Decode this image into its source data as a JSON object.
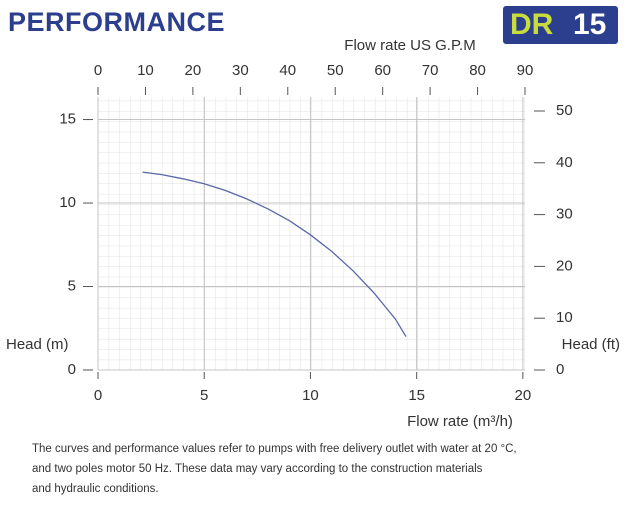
{
  "header": {
    "title": "PERFORMANCE",
    "badge_model": "DR",
    "badge_number": "15"
  },
  "chart_data": {
    "type": "line",
    "x_label": "Flow rate (m³/h)",
    "x2_label": "Flow rate US  G.P.M",
    "y_label": "Head (m)",
    "y2_label": "Head (ft)",
    "xlim": [
      0,
      20.1
    ],
    "xticks": [
      0,
      5,
      10,
      15,
      20
    ],
    "x2lim": [
      0,
      90
    ],
    "x2ticks": [
      0,
      10,
      20,
      30,
      40,
      50,
      60,
      70,
      80,
      90
    ],
    "ylim": [
      0,
      16.35
    ],
    "yticks": [
      0,
      5,
      10,
      15
    ],
    "y2lim": [
      0,
      52.7
    ],
    "y2ticks": [
      0,
      10,
      20,
      30,
      40,
      50
    ],
    "grid": true,
    "x": [
      2.1,
      3,
      4,
      5,
      6,
      7,
      8,
      9,
      10,
      11,
      12,
      13,
      14,
      14.5
    ],
    "series": [
      {
        "color": "#5a67a8",
        "values": [
          11.85,
          11.7,
          11.45,
          11.15,
          10.75,
          10.25,
          9.65,
          8.95,
          8.1,
          7.1,
          5.95,
          4.6,
          3.05,
          2.0
        ]
      }
    ]
  },
  "footnote": [
    "The curves and performance values refer to pumps with free delivery outlet with water at 20 °C,",
    "and two poles motor 50 Hz. These data may vary according to the construction materials",
    "and hydraulic conditions."
  ]
}
